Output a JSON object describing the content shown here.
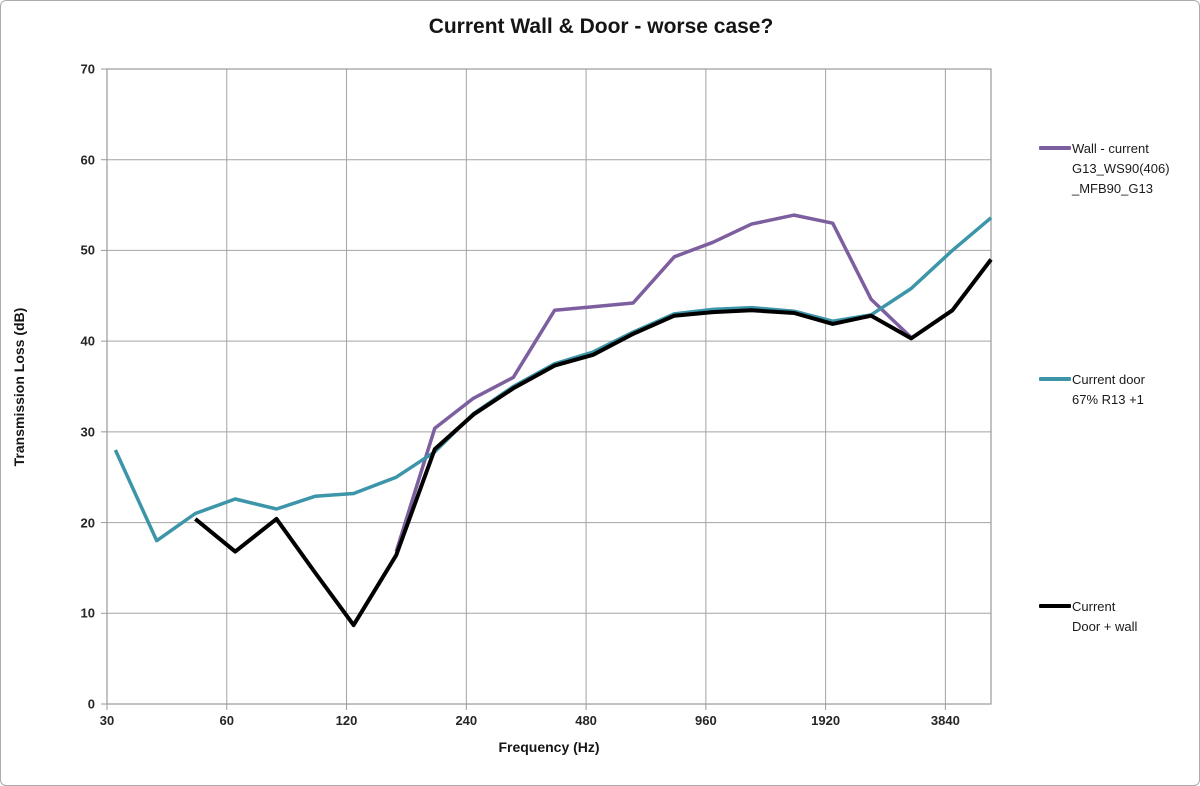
{
  "title": "Current Wall & Door - worse case?",
  "axes": {
    "x_label": "Frequency (Hz)",
    "y_label": "Transmission Loss (dB)"
  },
  "legend": {
    "items": [
      {
        "label_lines": "Wall - current\nG13_WS90(406)\n_MFB90_G13",
        "color": "#7d5fa0"
      },
      {
        "label_lines": "Current door\n67% R13 +1",
        "color": "#3c95a9"
      },
      {
        "label_lines": "Current\nDoor + wall",
        "color": "#000000"
      }
    ]
  },
  "chart_data": {
    "type": "line",
    "title": "Current Wall & Door - worse case?",
    "xlabel": "Frequency (Hz)",
    "ylabel": "Transmission Loss (dB)",
    "x_scale": "log2",
    "x_range": [
      30,
      5000
    ],
    "x_ticks": [
      30,
      60,
      120,
      240,
      480,
      960,
      1920,
      3840
    ],
    "y_range": [
      0,
      70
    ],
    "y_ticks": [
      0,
      10,
      20,
      30,
      40,
      50,
      60,
      70
    ],
    "grid": true,
    "legend_position": "right",
    "colors": {
      "gridline": "#a3a3a3",
      "axis_border": "#9a9a9a",
      "tick_text": "#262626"
    },
    "series": [
      {
        "name": "Wall - current G13_WS90(406)_MFB90_G13",
        "color": "#7d5fa0",
        "width": 3.5,
        "x": [
          160,
          200,
          250,
          315,
          400,
          500,
          630,
          800,
          1000,
          1250,
          1600,
          2000,
          2500,
          3150
        ],
        "values": [
          16.8,
          30.4,
          33.7,
          36.0,
          43.4,
          43.8,
          44.2,
          49.3,
          50.9,
          52.9,
          53.9,
          53.0,
          44.6,
          40.4
        ]
      },
      {
        "name": "Current door 67% R13 +1",
        "color": "#3c95a9",
        "width": 3.5,
        "x": [
          31.5,
          40,
          50,
          63,
          80,
          100,
          125,
          160,
          200,
          250,
          315,
          400,
          500,
          630,
          800,
          1000,
          1250,
          1600,
          2000,
          2500,
          3150,
          4000,
          5000
        ],
        "values": [
          28.0,
          18.0,
          21.0,
          22.6,
          21.5,
          22.9,
          23.2,
          25.0,
          27.8,
          32.0,
          35.0,
          37.5,
          38.8,
          41.0,
          43.0,
          43.5,
          43.7,
          43.3,
          42.2,
          42.9,
          45.8,
          50.0,
          53.6
        ]
      },
      {
        "name": "Current Door + wall",
        "color": "#000000",
        "width": 4,
        "x": [
          50,
          63,
          80,
          100,
          125,
          160,
          200,
          250,
          315,
          400,
          500,
          630,
          800,
          1000,
          1250,
          1600,
          2000,
          2500,
          3150,
          4000,
          5000
        ],
        "values": [
          20.4,
          16.8,
          20.4,
          14.5,
          8.7,
          16.4,
          28.1,
          31.9,
          34.8,
          37.3,
          38.5,
          40.8,
          42.8,
          43.2,
          43.4,
          43.1,
          41.9,
          42.8,
          40.3,
          43.4,
          49.0
        ]
      }
    ]
  }
}
